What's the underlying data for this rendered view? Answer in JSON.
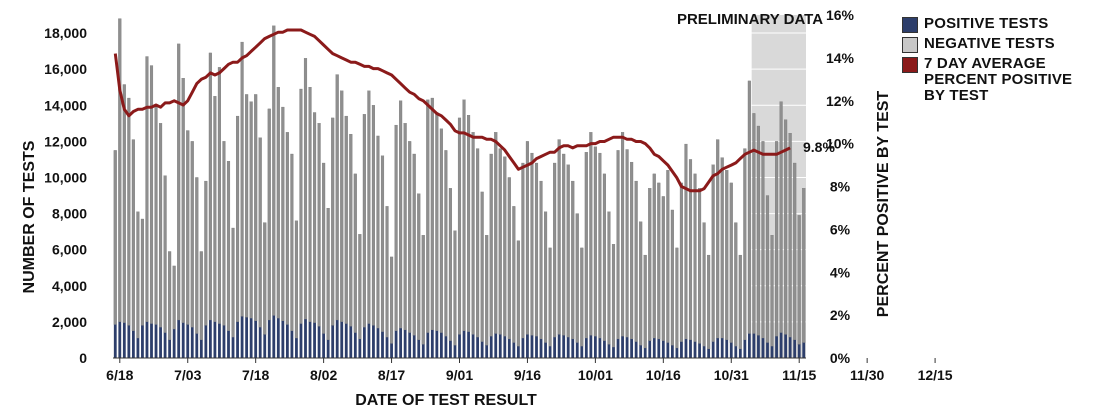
{
  "chart_data": {
    "type": "bar",
    "xlabel": "DATE OF TEST RESULT",
    "ylabel": "NUMBER OF TESTS",
    "y2label": "PERCENT POSITIVE BY TEST",
    "ylim": [
      0,
      19000
    ],
    "y2lim": [
      0,
      16
    ],
    "yticks": [
      "0",
      "2,000",
      "4,000",
      "6,000",
      "8,000",
      "10,000",
      "12,000",
      "14,000",
      "16,000",
      "18,000"
    ],
    "y2ticks": [
      "0%",
      "2%",
      "4%",
      "6%",
      "8%",
      "10%",
      "12%",
      "14%",
      "16%"
    ],
    "x_tick_labels": [
      "6/18",
      "7/03",
      "7/18",
      "8/02",
      "8/17",
      "9/01",
      "9/16",
      "10/01",
      "10/16",
      "10/31",
      "11/15",
      "11/30",
      "12/15"
    ],
    "shaded_region_label": "PRELIMINARY DATA",
    "end_label": "9.8%",
    "grid": true,
    "legend_position": "right",
    "categories_start": "6/17",
    "series": [
      {
        "name": "POSITIVE TESTS",
        "color": "#2d3e6b",
        "type": "bar",
        "stack": "tests",
        "values": [
          1850,
          2000,
          1950,
          1800,
          1500,
          1100,
          1800,
          2000,
          1900,
          1850,
          1700,
          1400,
          1000,
          1600,
          2100,
          1950,
          1850,
          1700,
          1350,
          1000,
          1800,
          2100,
          2000,
          1900,
          1800,
          1500,
          1150,
          2000,
          2300,
          2250,
          2200,
          2050,
          1700,
          1300,
          2100,
          2350,
          2200,
          2050,
          1850,
          1500,
          1100,
          1900,
          2150,
          2000,
          1950,
          1750,
          1350,
          1000,
          1800,
          2100,
          2000,
          1900,
          1750,
          1400,
          1050,
          1700,
          1900,
          1800,
          1650,
          1450,
          1150,
          800,
          1500,
          1650,
          1550,
          1400,
          1250,
          1000,
          750,
          1400,
          1550,
          1500,
          1400,
          1200,
          950,
          700,
          1300,
          1500,
          1450,
          1300,
          1150,
          900,
          700,
          1200,
          1350,
          1300,
          1200,
          1050,
          850,
          650,
          1100,
          1300,
          1250,
          1200,
          1050,
          850,
          650,
          1150,
          1300,
          1250,
          1150,
          1050,
          850,
          650,
          1100,
          1250,
          1200,
          1100,
          950,
          750,
          600,
          1050,
          1200,
          1150,
          1050,
          900,
          700,
          550,
          950,
          1100,
          1050,
          950,
          850,
          700,
          550,
          900,
          1050,
          1000,
          900,
          800,
          650,
          500,
          900,
          1100,
          1100,
          1000,
          850,
          650,
          500,
          1000,
          1350,
          1350,
          1250,
          1100,
          850,
          650,
          1200,
          1400,
          1300,
          1150,
          1000,
          750,
          850
        ]
      },
      {
        "name": "NEGATIVE TESTS",
        "color": "#9a9a9a",
        "type": "bar",
        "stack": "tests",
        "values": [
          9650,
          16800,
          13200,
          12600,
          10600,
          7000,
          5900,
          14700,
          14300,
          12100,
          11300,
          8700,
          4900,
          3500,
          15300,
          13550,
          10750,
          10300,
          8650,
          4900,
          8000,
          14800,
          12500,
          14200,
          10200,
          9400,
          6050,
          11400,
          15200,
          12350,
          12000,
          12550,
          10500,
          6200,
          11700,
          16050,
          12800,
          11850,
          10650,
          9800,
          6500,
          13000,
          14450,
          13000,
          11650,
          11250,
          9450,
          7300,
          11500,
          13600,
          12800,
          11500,
          10650,
          8800,
          5800,
          11800,
          12900,
          12200,
          10650,
          9750,
          7250,
          4800,
          11400,
          12600,
          11450,
          10600,
          10050,
          8100,
          6050,
          12900,
          12850,
          12100,
          11300,
          10300,
          8450,
          6350,
          12000,
          12800,
          12000,
          11200,
          10450,
          8300,
          6100,
          10100,
          11150,
          10300,
          9950,
          8950,
          7550,
          5850,
          9700,
          10700,
          10100,
          9600,
          8750,
          7250,
          5450,
          9650,
          10800,
          10050,
          9550,
          8750,
          7150,
          5450,
          10300,
          11250,
          10500,
          10250,
          9250,
          7350,
          5700,
          10450,
          11300,
          10400,
          9800,
          8900,
          6850,
          5150,
          8450,
          9100,
          8650,
          8000,
          9550,
          7500,
          5550,
          8800,
          10800,
          10000,
          9300,
          8600,
          6850,
          5200,
          9800,
          11000,
          10000,
          9400,
          8850,
          6850,
          5200,
          10600,
          14000,
          12200,
          11600,
          10900,
          8150,
          6150,
          10800,
          12800,
          11900,
          11300,
          9800,
          7150,
          8550
        ]
      },
      {
        "name": "7 DAY AVERAGE PERCENT POSITIVE BY TEST",
        "color": "#8b1a1a",
        "type": "line",
        "axis": "right",
        "values": [
          14.2,
          12.5,
          11.6,
          11.3,
          11.5,
          11.6,
          11.6,
          11.7,
          11.7,
          11.8,
          11.7,
          11.9,
          11.9,
          12.0,
          11.9,
          11.8,
          12.0,
          12.4,
          12.8,
          13.0,
          13.1,
          13.3,
          13.2,
          13.3,
          13.5,
          13.7,
          13.8,
          13.8,
          14.0,
          14.1,
          14.3,
          14.5,
          14.7,
          14.9,
          15.0,
          15.1,
          15.2,
          15.2,
          15.3,
          15.3,
          15.3,
          15.3,
          15.2,
          15.1,
          15.0,
          14.8,
          14.6,
          14.4,
          14.2,
          14.1,
          14.0,
          13.9,
          13.8,
          13.8,
          13.7,
          13.6,
          13.6,
          13.5,
          13.5,
          13.4,
          13.3,
          13.2,
          13.0,
          12.8,
          12.6,
          12.4,
          12.3,
          12.1,
          12.0,
          11.8,
          11.6,
          11.4,
          11.3,
          11.1,
          10.9,
          10.6,
          10.5,
          10.5,
          10.4,
          10.3,
          10.3,
          10.3,
          10.2,
          10.2,
          10.1,
          9.9,
          9.7,
          9.4,
          9.1,
          8.8,
          8.9,
          9.0,
          9.1,
          9.3,
          9.4,
          9.5,
          9.6,
          9.6,
          9.8,
          9.9,
          9.9,
          9.8,
          9.9,
          9.9,
          9.9,
          10.0,
          10.0,
          10.1,
          10.1,
          10.2,
          10.3,
          10.3,
          10.3,
          10.2,
          10.2,
          10.1,
          10.1,
          10.0,
          9.8,
          9.5,
          9.4,
          9.2,
          9.0,
          8.7,
          8.4,
          8.0,
          7.9,
          7.8,
          7.8,
          7.8,
          7.9,
          8.2,
          8.5,
          8.6,
          8.8,
          8.9,
          9.0,
          9.1,
          9.3,
          9.5,
          9.6,
          9.7,
          9.6,
          9.5,
          9.5,
          9.5,
          9.5,
          9.6,
          9.7,
          9.8
        ]
      }
    ]
  }
}
